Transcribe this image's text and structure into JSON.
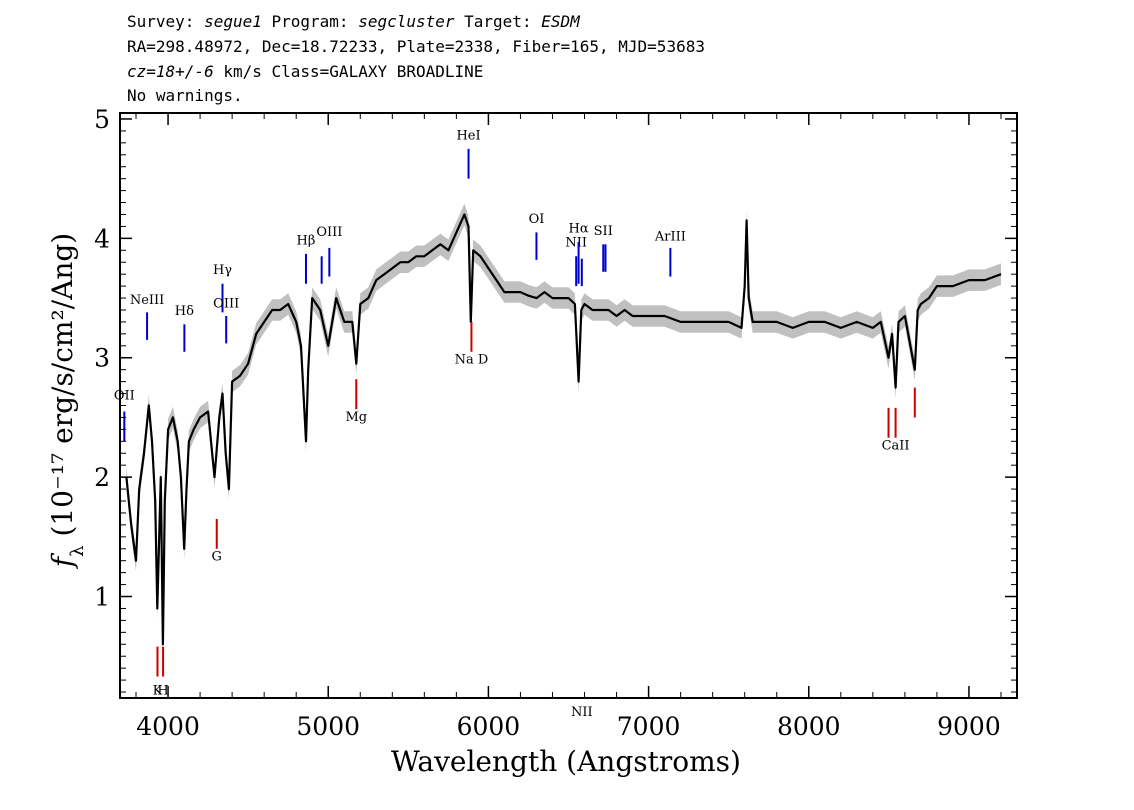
{
  "header": {
    "line1": {
      "survey_label": "Survey: ",
      "survey": "segue1",
      "program_label": " Program: ",
      "program": "segcluster",
      "target_label": " Target: ",
      "target": "ESDM"
    },
    "line2": "RA=298.48972, Dec=18.72233, Plate=2338, Fiber=165, MJD=53683",
    "line3": {
      "cz": "cz=18+/-6",
      "rest": " km/s Class=GALAXY BROADLINE"
    },
    "line4": "No warnings."
  },
  "chart_data": {
    "type": "line",
    "xlabel": "Wavelength (Angstroms)",
    "ylabel_prefix": "f",
    "ylabel_sub": "λ",
    "ylabel_units": " (10⁻¹⁷ erg/s/cm²/Ang)",
    "xlim": [
      3700,
      9300
    ],
    "ylim": [
      0.15,
      5.05
    ],
    "x_ticks": [
      4000,
      5000,
      6000,
      7000,
      8000,
      9000
    ],
    "x_tick_labels": [
      "4000",
      "5000",
      "6000",
      "7000",
      "8000",
      "9000"
    ],
    "y_ticks": [
      1,
      2,
      3,
      4,
      5
    ],
    "y_tick_labels": [
      "1",
      "2",
      "3",
      "4",
      "5"
    ],
    "series": [
      {
        "color": "#000000",
        "x": [
          3740,
          3770,
          3800,
          3820,
          3850,
          3880,
          3900,
          3920,
          3933,
          3945,
          3955,
          3968,
          3980,
          4000,
          4030,
          4060,
          4080,
          4101,
          4115,
          4130,
          4160,
          4200,
          4250,
          4290,
          4320,
          4340,
          4360,
          4380,
          4400,
          4450,
          4500,
          4550,
          4600,
          4650,
          4700,
          4750,
          4800,
          4830,
          4861,
          4875,
          4900,
          4950,
          5000,
          5050,
          5100,
          5150,
          5175,
          5200,
          5250,
          5300,
          5350,
          5400,
          5450,
          5500,
          5550,
          5600,
          5650,
          5700,
          5750,
          5800,
          5850,
          5876,
          5890,
          5905,
          5950,
          6000,
          6050,
          6100,
          6150,
          6200,
          6250,
          6300,
          6350,
          6400,
          6450,
          6500,
          6540,
          6563,
          6580,
          6600,
          6650,
          6700,
          6750,
          6800,
          6850,
          6900,
          6950,
          7000,
          7100,
          7200,
          7300,
          7400,
          7500,
          7580,
          7600,
          7612,
          7625,
          7650,
          7700,
          7800,
          7900,
          8000,
          8100,
          8200,
          8300,
          8400,
          8450,
          8498,
          8520,
          8542,
          8560,
          8600,
          8662,
          8680,
          8700,
          8750,
          8800,
          8900,
          9000,
          9100,
          9200
        ],
        "y": [
          2.0,
          1.6,
          1.3,
          1.9,
          2.2,
          2.6,
          2.3,
          1.8,
          0.9,
          1.5,
          2.0,
          0.6,
          1.8,
          2.4,
          2.5,
          2.3,
          2.0,
          1.4,
          1.9,
          2.3,
          2.4,
          2.5,
          2.55,
          2.0,
          2.5,
          2.7,
          2.2,
          1.9,
          2.8,
          2.85,
          2.95,
          3.2,
          3.3,
          3.4,
          3.4,
          3.45,
          3.3,
          3.1,
          2.3,
          2.9,
          3.5,
          3.4,
          3.1,
          3.5,
          3.3,
          3.3,
          2.95,
          3.45,
          3.5,
          3.65,
          3.7,
          3.75,
          3.8,
          3.8,
          3.85,
          3.85,
          3.9,
          3.95,
          3.9,
          4.05,
          4.2,
          4.1,
          3.3,
          3.9,
          3.85,
          3.75,
          3.65,
          3.55,
          3.55,
          3.55,
          3.52,
          3.5,
          3.55,
          3.5,
          3.5,
          3.5,
          3.45,
          2.8,
          3.4,
          3.45,
          3.4,
          3.4,
          3.4,
          3.35,
          3.4,
          3.35,
          3.35,
          3.35,
          3.35,
          3.3,
          3.3,
          3.3,
          3.3,
          3.25,
          3.6,
          4.15,
          3.5,
          3.3,
          3.3,
          3.3,
          3.25,
          3.3,
          3.3,
          3.25,
          3.3,
          3.25,
          3.3,
          3.0,
          3.2,
          2.75,
          3.3,
          3.35,
          2.9,
          3.4,
          3.45,
          3.5,
          3.6,
          3.6,
          3.65,
          3.65,
          3.7
        ]
      }
    ],
    "emission_lines": [
      {
        "label": "OII",
        "x": 3727,
        "y0": 2.3,
        "y1": 2.55,
        "label_y": 2.65,
        "color": "#0000cc"
      },
      {
        "label": "NeIII",
        "x": 3869,
        "y0": 3.15,
        "y1": 3.38,
        "label_y": 3.45,
        "color": "#0000cc"
      },
      {
        "label": "Hδ",
        "x": 4102,
        "y0": 3.05,
        "y1": 3.28,
        "label_y": 3.36,
        "color": "#0000cc"
      },
      {
        "label": "Hγ",
        "x": 4340,
        "y0": 3.38,
        "y1": 3.62,
        "label_y": 3.7,
        "color": "#0000cc"
      },
      {
        "label": "OIII",
        "x": 4363,
        "y0": 3.12,
        "y1": 3.35,
        "label_y": 3.42,
        "color": "#0000cc"
      },
      {
        "label": "Hβ",
        "x": 4861,
        "y0": 3.62,
        "y1": 3.87,
        "label_y": 3.95,
        "color": "#0000cc"
      },
      {
        "label": "",
        "x": 4959,
        "y0": 3.62,
        "y1": 3.85,
        "label_y": 0,
        "color": "#0000cc"
      },
      {
        "label": "OIII",
        "x": 5007,
        "y0": 3.68,
        "y1": 3.92,
        "label_y": 4.02,
        "color": "#0000cc"
      },
      {
        "label": "HeI",
        "x": 5876,
        "y0": 4.5,
        "y1": 4.75,
        "label_y": 4.83,
        "color": "#0000cc"
      },
      {
        "label": "OI",
        "x": 6300,
        "y0": 3.82,
        "y1": 4.05,
        "label_y": 4.13,
        "color": "#0000cc"
      },
      {
        "label": "NII",
        "x": 6548,
        "y0": 3.6,
        "y1": 3.85,
        "label_y": 3.93,
        "color": "#0000cc"
      },
      {
        "label": "Hα",
        "x": 6563,
        "y0": 3.62,
        "y1": 3.97,
        "label_y": 4.05,
        "color": "#0000cc"
      },
      {
        "label": "NII",
        "x": 6583,
        "y0": 3.6,
        "y1": 3.83,
        "label_y": 0,
        "color": "#0000cc"
      },
      {
        "label": "SII",
        "x": 6717,
        "y0": 3.72,
        "y1": 3.95,
        "label_y": 4.03,
        "color": "#0000cc"
      },
      {
        "label": "",
        "x": 6731,
        "y0": 3.72,
        "y1": 3.95,
        "label_y": 0,
        "color": "#0000cc"
      },
      {
        "label": "ArIII",
        "x": 7136,
        "y0": 3.68,
        "y1": 3.92,
        "label_y": 3.98,
        "color": "#0000cc"
      }
    ],
    "absorption_lines": [
      {
        "label": "K",
        "x": 3934,
        "y0": 0.33,
        "y1": 0.58,
        "label_y": 0.18,
        "color": "#cc0000"
      },
      {
        "label": "H",
        "x": 3969,
        "y0": 0.33,
        "y1": 0.58,
        "label_y": 0.18,
        "color": "#cc0000"
      },
      {
        "label": "G",
        "x": 4304,
        "y0": 1.4,
        "y1": 1.65,
        "label_y": 1.3,
        "color": "#cc0000"
      },
      {
        "label": "Mg",
        "x": 5175,
        "y0": 2.57,
        "y1": 2.82,
        "label_y": 2.47,
        "color": "#cc0000"
      },
      {
        "label": "Na D",
        "x": 5894,
        "y0": 3.05,
        "y1": 3.3,
        "label_y": 2.95,
        "color": "#cc0000"
      },
      {
        "label": "",
        "x": 8498,
        "y0": 2.33,
        "y1": 2.58,
        "label_y": 0,
        "color": "#cc0000"
      },
      {
        "label": "CaII",
        "x": 8542,
        "y0": 2.33,
        "y1": 2.58,
        "label_y": 2.23,
        "color": "#cc0000"
      },
      {
        "label": "",
        "x": 8662,
        "y0": 2.5,
        "y1": 2.75,
        "label_y": 0,
        "color": "#cc0000"
      }
    ],
    "error_band_color": "#c0c0c0",
    "error_band_halfwidth": 0.09
  }
}
